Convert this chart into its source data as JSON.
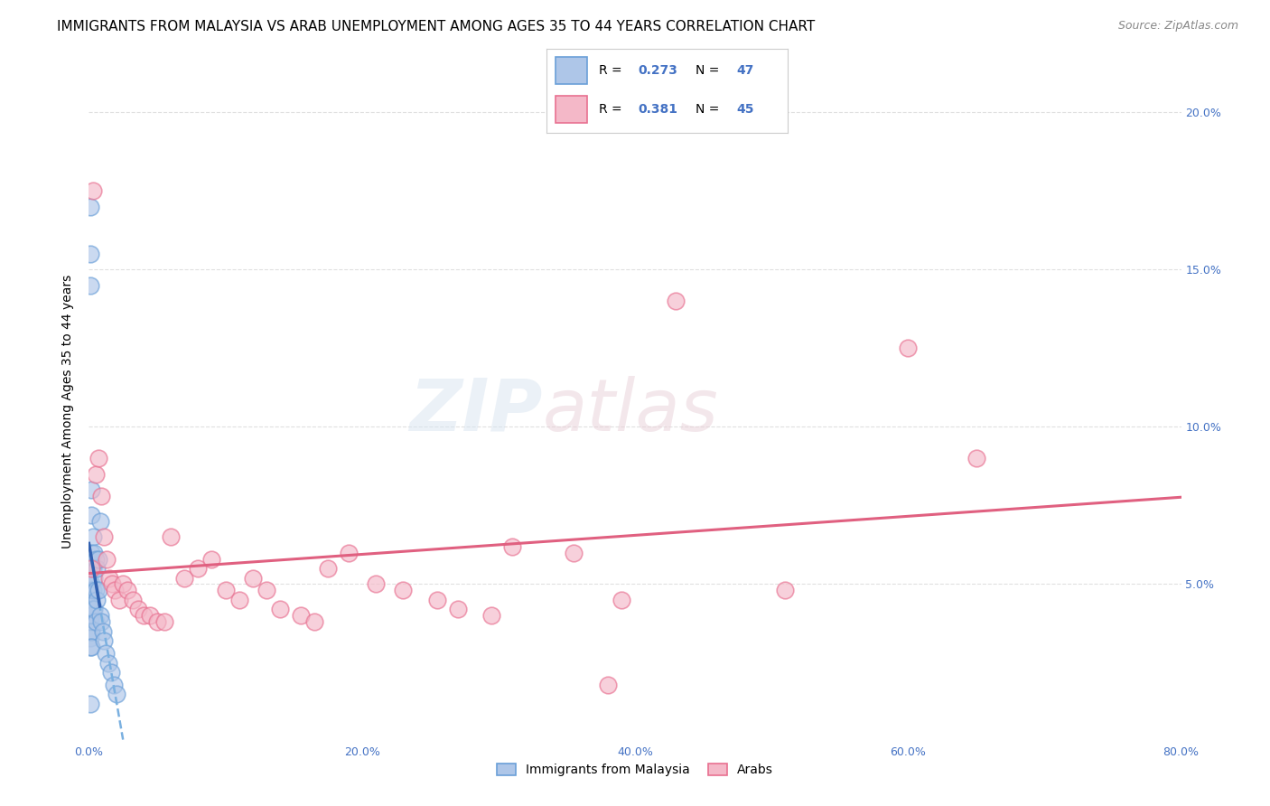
{
  "title": "IMMIGRANTS FROM MALAYSIA VS ARAB UNEMPLOYMENT AMONG AGES 35 TO 44 YEARS CORRELATION CHART",
  "source": "Source: ZipAtlas.com",
  "ylabel": "Unemployment Among Ages 35 to 44 years",
  "xlim": [
    0.0,
    0.8
  ],
  "ylim": [
    0.0,
    0.21
  ],
  "legend1_R": "0.273",
  "legend1_N": "47",
  "legend2_R": "0.381",
  "legend2_N": "45",
  "watermark_zip": "ZIP",
  "watermark_atlas": "atlas",
  "color_blue_fill": "#aec6e8",
  "color_blue_edge": "#6a9fd8",
  "color_pink_fill": "#f4b8c8",
  "color_pink_edge": "#e87090",
  "color_blue_line_dash": "#7ab0e0",
  "color_blue_line_solid": "#3060b0",
  "color_pink_line": "#e06080",
  "color_tick": "#4472c4",
  "grid_color": "#e0e0e0",
  "title_fontsize": 11,
  "tick_fontsize": 9,
  "blue_scatter_x": [
    0.001,
    0.001,
    0.001,
    0.001,
    0.001,
    0.001,
    0.001,
    0.001,
    0.001,
    0.001,
    0.002,
    0.002,
    0.002,
    0.002,
    0.002,
    0.002,
    0.002,
    0.003,
    0.003,
    0.003,
    0.003,
    0.004,
    0.004,
    0.004,
    0.005,
    0.005,
    0.005,
    0.006,
    0.006,
    0.007,
    0.007,
    0.008,
    0.009,
    0.01,
    0.011,
    0.012,
    0.014,
    0.016,
    0.018,
    0.02,
    0.001,
    0.001,
    0.001,
    0.002,
    0.002,
    0.008,
    0.001
  ],
  "blue_scatter_y": [
    0.055,
    0.05,
    0.048,
    0.045,
    0.042,
    0.04,
    0.038,
    0.035,
    0.033,
    0.03,
    0.06,
    0.055,
    0.05,
    0.045,
    0.04,
    0.035,
    0.03,
    0.065,
    0.055,
    0.048,
    0.042,
    0.06,
    0.052,
    0.042,
    0.058,
    0.048,
    0.038,
    0.055,
    0.045,
    0.058,
    0.048,
    0.04,
    0.038,
    0.035,
    0.032,
    0.028,
    0.025,
    0.022,
    0.018,
    0.015,
    0.17,
    0.155,
    0.145,
    0.08,
    0.072,
    0.07,
    0.012
  ],
  "pink_scatter_x": [
    0.003,
    0.005,
    0.007,
    0.009,
    0.011,
    0.013,
    0.015,
    0.017,
    0.019,
    0.022,
    0.025,
    0.028,
    0.032,
    0.036,
    0.04,
    0.045,
    0.05,
    0.055,
    0.06,
    0.07,
    0.08,
    0.09,
    0.1,
    0.11,
    0.12,
    0.13,
    0.14,
    0.155,
    0.165,
    0.175,
    0.19,
    0.21,
    0.23,
    0.255,
    0.27,
    0.295,
    0.31,
    0.355,
    0.39,
    0.43,
    0.38,
    0.51,
    0.6,
    0.65,
    0.002
  ],
  "pink_scatter_y": [
    0.175,
    0.085,
    0.09,
    0.078,
    0.065,
    0.058,
    0.052,
    0.05,
    0.048,
    0.045,
    0.05,
    0.048,
    0.045,
    0.042,
    0.04,
    0.04,
    0.038,
    0.038,
    0.065,
    0.052,
    0.055,
    0.058,
    0.048,
    0.045,
    0.052,
    0.048,
    0.042,
    0.04,
    0.038,
    0.055,
    0.06,
    0.05,
    0.048,
    0.045,
    0.042,
    0.04,
    0.062,
    0.06,
    0.045,
    0.14,
    0.018,
    0.048,
    0.125,
    0.09,
    0.055
  ]
}
